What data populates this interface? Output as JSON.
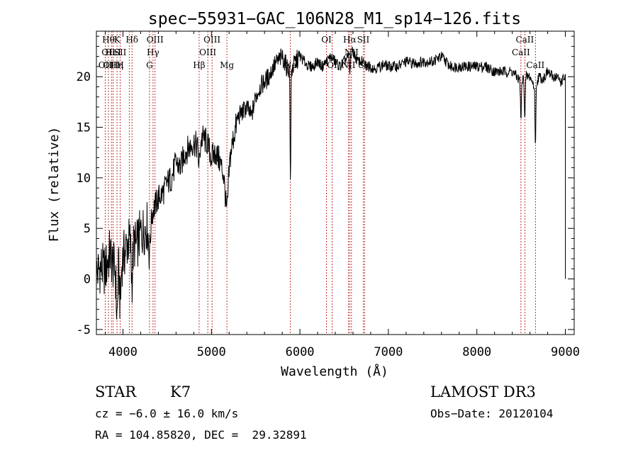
{
  "chart_data": {
    "type": "line",
    "title": "spec−55931−GAC_106N28_M1_sp14−126.fits",
    "xlabel": "Wavelength (Å)",
    "ylabel": "Flux (relative)",
    "xlim": [
      3700,
      9100
    ],
    "ylim": [
      -5.5,
      24.5
    ],
    "xticks": [
      4000,
      5000,
      6000,
      7000,
      8000,
      9000
    ],
    "yticks": [
      -5,
      0,
      5,
      10,
      15,
      20
    ],
    "series": [
      {
        "name": "flux",
        "x": [
          3700,
          3750,
          3800,
          3850,
          3900,
          3950,
          4000,
          4050,
          4100,
          4150,
          4200,
          4250,
          4300,
          4350,
          4400,
          4450,
          4500,
          4550,
          4600,
          4650,
          4700,
          4750,
          4800,
          4850,
          4900,
          4950,
          5000,
          5050,
          5100,
          5150,
          5200,
          5250,
          5300,
          5350,
          5400,
          5450,
          5500,
          5550,
          5600,
          5650,
          5700,
          5750,
          5800,
          5850,
          5900,
          5950,
          6000,
          6050,
          6100,
          6150,
          6200,
          6250,
          6300,
          6350,
          6400,
          6450,
          6500,
          6550,
          6600,
          6650,
          6700,
          6750,
          6800,
          6850,
          6900,
          6950,
          7000,
          7100,
          7200,
          7300,
          7400,
          7500,
          7600,
          7700,
          7800,
          7900,
          8000,
          8100,
          8200,
          8300,
          8400,
          8500,
          8550,
          8600,
          8650,
          8700,
          8750,
          8800,
          8850,
          8900,
          8950,
          9000
        ],
        "y": [
          0.5,
          1.2,
          0.8,
          2.5,
          1.0,
          3.0,
          2.0,
          3.5,
          4.0,
          3.2,
          4.5,
          5.0,
          6.0,
          7.0,
          8.0,
          8.5,
          9.5,
          10.0,
          11.5,
          11.0,
          12.5,
          13.0,
          13.5,
          13.0,
          14.0,
          13.5,
          12.0,
          12.5,
          11.5,
          10.0,
          11.5,
          14.0,
          16.0,
          16.5,
          17.0,
          16.0,
          18.0,
          19.0,
          19.5,
          20.0,
          21.0,
          21.5,
          22.0,
          21.0,
          20.5,
          21.5,
          22.0,
          21.5,
          21.0,
          21.0,
          21.5,
          21.0,
          21.5,
          22.0,
          21.5,
          21.0,
          21.5,
          22.0,
          22.5,
          21.5,
          21.5,
          21.0,
          21.0,
          20.8,
          21.0,
          21.2,
          21.0,
          21.0,
          21.5,
          21.3,
          21.5,
          21.5,
          22.0,
          21.0,
          21.0,
          21.0,
          21.0,
          21.0,
          20.5,
          20.5,
          20.5,
          19.5,
          20.0,
          20.0,
          19.0,
          20.0,
          19.8,
          20.5,
          20.0,
          20.0,
          19.5,
          20.0
        ]
      }
    ],
    "lines": [
      {
        "x": 3799,
        "labels": [
          "",
          "",
          "OII"
        ]
      },
      {
        "x": 3836,
        "labels": [
          "Hθ",
          "OII",
          ""
        ]
      },
      {
        "x": 3870,
        "labels": [
          "",
          "",
          "OIII"
        ]
      },
      {
        "x": 3889,
        "labels": [
          "",
          "HeI",
          ""
        ]
      },
      {
        "x": 3933,
        "labels": [
          "K",
          "",
          "Hη"
        ]
      },
      {
        "x": 3969,
        "labels": [
          "",
          "SII",
          "H"
        ]
      },
      {
        "x": 4071,
        "labels": [
          "",
          "",
          ""
        ]
      },
      {
        "x": 4102,
        "labels": [
          "Hδ",
          "",
          ""
        ]
      },
      {
        "x": 4300,
        "labels": [
          "",
          "",
          "G"
        ]
      },
      {
        "x": 4340,
        "labels": [
          "",
          "Hγ",
          ""
        ]
      },
      {
        "x": 4363,
        "labels": [
          "OIII",
          "",
          ""
        ]
      },
      {
        "x": 4861,
        "labels": [
          "",
          "",
          "Hβ"
        ]
      },
      {
        "x": 4959,
        "labels": [
          "",
          "OIII",
          ""
        ]
      },
      {
        "x": 5007,
        "labels": [
          "OIII",
          "",
          ""
        ]
      },
      {
        "x": 5175,
        "labels": [
          "",
          "",
          "Mg"
        ]
      },
      {
        "x": 5893,
        "labels": [
          "",
          "",
          "Na"
        ]
      },
      {
        "x": 6300,
        "labels": [
          "OI",
          "",
          ""
        ]
      },
      {
        "x": 6364,
        "labels": [
          "",
          "",
          "OI"
        ]
      },
      {
        "x": 6548,
        "labels": [
          "",
          "",
          "NII"
        ]
      },
      {
        "x": 6563,
        "labels": [
          "Hα",
          "",
          ""
        ]
      },
      {
        "x": 6583,
        "labels": [
          "",
          "NII",
          ""
        ]
      },
      {
        "x": 6716,
        "labels": [
          "SII",
          "",
          ""
        ]
      },
      {
        "x": 6731,
        "labels": [
          "",
          "",
          "SII"
        ]
      },
      {
        "x": 8498,
        "labels": [
          "",
          "CaII",
          ""
        ]
      },
      {
        "x": 8542,
        "labels": [
          "CaII",
          "",
          ""
        ]
      },
      {
        "x": 8662,
        "labels": [
          "",
          "",
          "CaII"
        ]
      }
    ]
  },
  "info": {
    "class": "STAR",
    "subclass": "K7",
    "survey": "LAMOST DR3",
    "cz": "cz = −6.0 ± 16.0 km/s",
    "obsdate": "Obs−Date: 20120104",
    "radec": "RA = 104.85820, DEC =  29.32891"
  }
}
